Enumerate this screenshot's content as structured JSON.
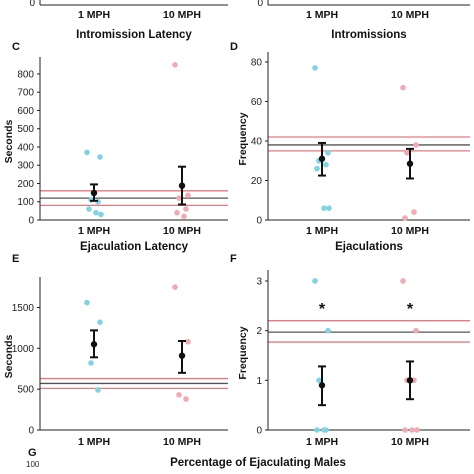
{
  "colors": {
    "a": "#7fd3e3",
    "b": "#f0aab2",
    "mean": "#111111",
    "ref_black": "#555555",
    "ref_red": "#e07a80"
  },
  "top_strip": {
    "left_categories": [
      "1 MPH",
      "10 MPH"
    ],
    "left_ytick": "0",
    "right_categories": [
      "1 MPH",
      "10 MPH"
    ],
    "right_ytick": "0"
  },
  "bottom": {
    "letter": "G",
    "ytick": "100",
    "title": "Percentage of Ejaculating Males"
  },
  "chart_data": [
    {
      "panel": "C",
      "type": "scatter",
      "title": "Intromission Latency",
      "ylabel": "Seconds",
      "categories": [
        "1 MPH",
        "10 MPH"
      ],
      "ylim": [
        0,
        860
      ],
      "yticks": [
        0,
        100,
        200,
        300,
        400,
        500,
        600,
        700,
        800
      ],
      "series": [
        {
          "category": "1 MPH",
          "color": "a",
          "points": [
            370,
            345,
            110,
            100,
            60,
            40,
            30
          ]
        },
        {
          "category": "10 MPH",
          "color": "b",
          "points": [
            850,
            135,
            120,
            60,
            40,
            20
          ]
        }
      ],
      "means": [
        {
          "category": "1 MPH",
          "mean": 148,
          "lo": 105,
          "hi": 195
        },
        {
          "category": "10 MPH",
          "mean": 188,
          "lo": 85,
          "hi": 292
        }
      ],
      "ref_lines": [
        {
          "color": "ref_red",
          "y": 160
        },
        {
          "color": "ref_black",
          "y": 120
        },
        {
          "color": "ref_red",
          "y": 80
        }
      ]
    },
    {
      "panel": "D",
      "type": "scatter",
      "title": "Intromissions",
      "ylabel": "Frequency",
      "categories": [
        "1 MPH",
        "10 MPH"
      ],
      "ylim": [
        0,
        82
      ],
      "yticks": [
        0,
        20,
        40,
        60,
        80
      ],
      "series": [
        {
          "category": "1 MPH",
          "color": "a",
          "points": [
            77,
            34,
            30,
            28,
            26,
            6,
            6
          ]
        },
        {
          "category": "10 MPH",
          "color": "b",
          "points": [
            67,
            38,
            34,
            4,
            1
          ]
        }
      ],
      "means": [
        {
          "category": "1 MPH",
          "mean": 31,
          "lo": 22.5,
          "hi": 39
        },
        {
          "category": "10 MPH",
          "mean": 28.5,
          "lo": 21,
          "hi": 36
        }
      ],
      "ref_lines": [
        {
          "color": "ref_red",
          "y": 42
        },
        {
          "color": "ref_black",
          "y": 38
        },
        {
          "color": "ref_red",
          "y": 35
        }
      ]
    },
    {
      "panel": "E",
      "type": "scatter",
      "title": "Ejaculation Latency",
      "ylabel": "Seconds",
      "categories": [
        "1 MPH",
        "10 MPH"
      ],
      "ylim": [
        0,
        1800
      ],
      "yticks": [
        0,
        500,
        1000,
        1500
      ],
      "series": [
        {
          "category": "1 MPH",
          "color": "a",
          "points": [
            1560,
            1320,
            820,
            490
          ]
        },
        {
          "category": "10 MPH",
          "color": "b",
          "points": [
            1750,
            1080,
            430,
            380
          ]
        }
      ],
      "means": [
        {
          "category": "1 MPH",
          "mean": 1050,
          "lo": 890,
          "hi": 1220
        },
        {
          "category": "10 MPH",
          "mean": 910,
          "lo": 700,
          "hi": 1090
        }
      ],
      "ref_lines": [
        {
          "color": "ref_red",
          "y": 630
        },
        {
          "color": "ref_black",
          "y": 570
        },
        {
          "color": "ref_red",
          "y": 510
        }
      ]
    },
    {
      "panel": "F",
      "type": "scatter",
      "title": "Ejaculations",
      "ylabel": "Frequency",
      "categories": [
        "1 MPH",
        "10 MPH"
      ],
      "ylim": [
        0,
        3.1
      ],
      "yticks": [
        0,
        1,
        2,
        3
      ],
      "annotation": "*",
      "series": [
        {
          "category": "1 MPH",
          "color": "a",
          "points": [
            3,
            2,
            1,
            0,
            0,
            0
          ]
        },
        {
          "category": "10 MPH",
          "color": "b",
          "points": [
            3,
            2,
            1,
            1,
            0,
            0,
            0
          ]
        }
      ],
      "means": [
        {
          "category": "1 MPH",
          "mean": 0.9,
          "lo": 0.5,
          "hi": 1.28
        },
        {
          "category": "10 MPH",
          "mean": 1.0,
          "lo": 0.62,
          "hi": 1.38
        }
      ],
      "ref_lines": [
        {
          "color": "ref_red",
          "y": 2.2
        },
        {
          "color": "ref_black",
          "y": 1.97
        },
        {
          "color": "ref_red",
          "y": 1.77
        }
      ]
    }
  ]
}
